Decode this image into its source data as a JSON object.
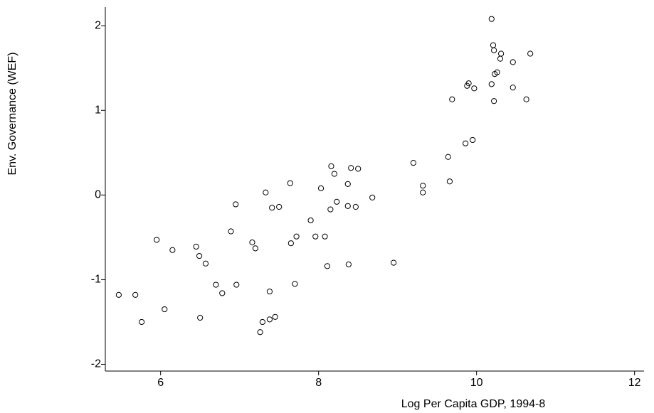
{
  "chart_data": {
    "type": "scatter",
    "x_label": "Log Per Capita GDP, 1994-8",
    "y_label": "Env. Governance (WEF)",
    "x": [
      5.47,
      5.68,
      5.76,
      5.95,
      6.05,
      6.15,
      6.45,
      6.49,
      6.5,
      6.57,
      6.7,
      6.78,
      6.89,
      6.95,
      6.96,
      7.16,
      7.2,
      7.26,
      7.29,
      7.33,
      7.38,
      7.38,
      7.41,
      7.45,
      7.5,
      7.64,
      7.65,
      7.72,
      7.7,
      7.9,
      7.96,
      8.03,
      8.08,
      8.11,
      8.15,
      8.16,
      8.2,
      8.23,
      8.37,
      8.37,
      8.38,
      8.41,
      8.47,
      8.5,
      8.68,
      8.95,
      9.2,
      9.32,
      9.32,
      9.64,
      9.66,
      9.69,
      9.86,
      9.88,
      9.9,
      9.95,
      9.97,
      10.19,
      10.19,
      10.21,
      10.22,
      10.22,
      10.23,
      10.26,
      10.3,
      10.31,
      10.46,
      10.46,
      10.63,
      10.68
    ],
    "values": [
      -1.18,
      -1.18,
      -1.5,
      -0.53,
      -1.35,
      -0.65,
      -0.61,
      -0.72,
      -1.45,
      -0.81,
      -1.06,
      -1.16,
      -0.43,
      -0.11,
      -1.06,
      -0.56,
      -0.63,
      -1.62,
      -1.5,
      0.03,
      -1.14,
      -1.47,
      -0.15,
      -1.44,
      -0.14,
      0.14,
      -0.57,
      -0.49,
      -1.05,
      -0.3,
      -0.49,
      0.08,
      -0.49,
      -0.84,
      -0.17,
      0.34,
      0.25,
      -0.08,
      0.13,
      -0.13,
      -0.82,
      0.32,
      -0.14,
      0.31,
      -0.03,
      -0.8,
      0.38,
      0.11,
      0.03,
      0.45,
      0.16,
      1.13,
      0.61,
      1.29,
      1.32,
      0.65,
      1.26,
      2.08,
      1.31,
      1.77,
      1.71,
      1.11,
      1.43,
      1.45,
      1.61,
      1.67,
      1.57,
      1.27,
      1.13,
      1.67
    ],
    "color": "#000000",
    "xlim": [
      5.3,
      12.12
    ],
    "ylim": [
      -2.08,
      2.22
    ],
    "xticks": [
      6,
      8,
      10,
      12
    ],
    "yticks": [
      -2,
      -1,
      0,
      1,
      2
    ]
  }
}
